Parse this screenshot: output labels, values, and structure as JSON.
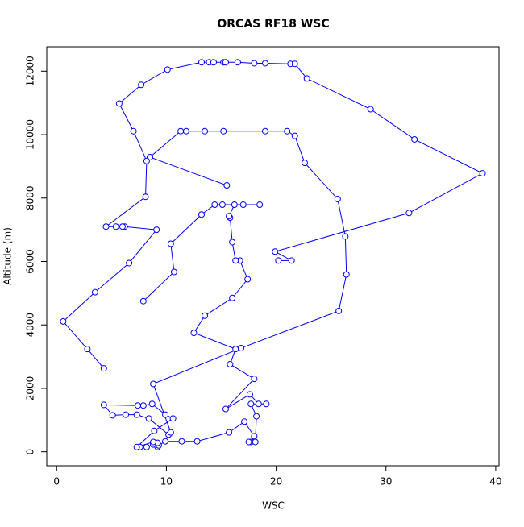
{
  "chart_data": {
    "type": "line",
    "title": "ORCAS RF18 WSC",
    "xlabel": "WSC",
    "ylabel": "Altitude (m)",
    "x": [
      7.6,
      8.2,
      8.8,
      9.2,
      9.3,
      9.9,
      11.4,
      12.8,
      15.7,
      17.1,
      18.0,
      17.7,
      17.5,
      18.1,
      18.2,
      17.7,
      19.1,
      18.4,
      17.6,
      15.4,
      18.0,
      15.8,
      16.3,
      12.5,
      13.5,
      16.0,
      17.4,
      16.7,
      16.3,
      16.0,
      15.8,
      15.7,
      16.2,
      18.5,
      17.0,
      15.1,
      14.4,
      13.2,
      10.4,
      10.7,
      7.9,
      null,
      9.2,
      8.8,
      7.3,
      8.9,
      10.6,
      9.9,
      8.7,
      7.9,
      7.4,
      4.3,
      5.1,
      6.3,
      7.3,
      8.4,
      10.2,
      10.4,
      8.8,
      16.8,
      25.7,
      26.4,
      26.3,
      25.6,
      22.6,
      21.7,
      21.0,
      19.0,
      15.2,
      13.5,
      11.8,
      11.3,
      8.5,
      15.5,
      null,
      4.3,
      2.8,
      0.6,
      3.5,
      6.6,
      9.1,
      6.2,
      6.0,
      5.4,
      4.5,
      8.1,
      8.2,
      7.0,
      5.7,
      7.7,
      10.1,
      13.2,
      13.9,
      14.3,
      15.2,
      15.4,
      16.5,
      18.0,
      19.0,
      21.3,
      21.7,
      22.8,
      28.6,
      32.6,
      38.8,
      32.1,
      19.9,
      21.4,
      20.2
    ],
    "series": [
      {
        "color": "#0000ff",
        "values": [
          150,
          150,
          230,
          150,
          200,
          330,
          330,
          330,
          610,
          950,
          490,
          310,
          310,
          310,
          1120,
          1510,
          1510,
          1510,
          1810,
          1350,
          2300,
          2760,
          3240,
          3750,
          4290,
          4850,
          5440,
          6030,
          6030,
          6610,
          7380,
          7430,
          7790,
          7790,
          7790,
          7790,
          7790,
          7480,
          6560,
          5670,
          4750,
          null,
          280,
          310,
          150,
          660,
          1050,
          1170,
          1510,
          1460,
          1460,
          1480,
          1150,
          1170,
          1170,
          1050,
          540,
          610,
          2140,
          3270,
          4440,
          5590,
          6790,
          7970,
          9110,
          9960,
          10110,
          10110,
          10110,
          10110,
          10110,
          10110,
          9290,
          8400,
          null,
          2630,
          3240,
          4110,
          5030,
          5950,
          7000,
          7100,
          7100,
          7100,
          7100,
          8040,
          9170,
          10110,
          10980,
          11570,
          12050,
          12280,
          12280,
          12280,
          12280,
          12280,
          12280,
          12250,
          12250,
          12230,
          12230,
          11770,
          10800,
          9850,
          8780,
          7530,
          6310,
          6030,
          6030
        ]
      }
    ],
    "marker": "open-circle",
    "xlim": [
      -0.9,
      40.3
    ],
    "ylim": [
      -440,
      12770
    ],
    "xticks": [
      0,
      10,
      20,
      30,
      40
    ],
    "yticks": [
      0,
      2000,
      4000,
      6000,
      8000,
      10000,
      12000
    ]
  }
}
